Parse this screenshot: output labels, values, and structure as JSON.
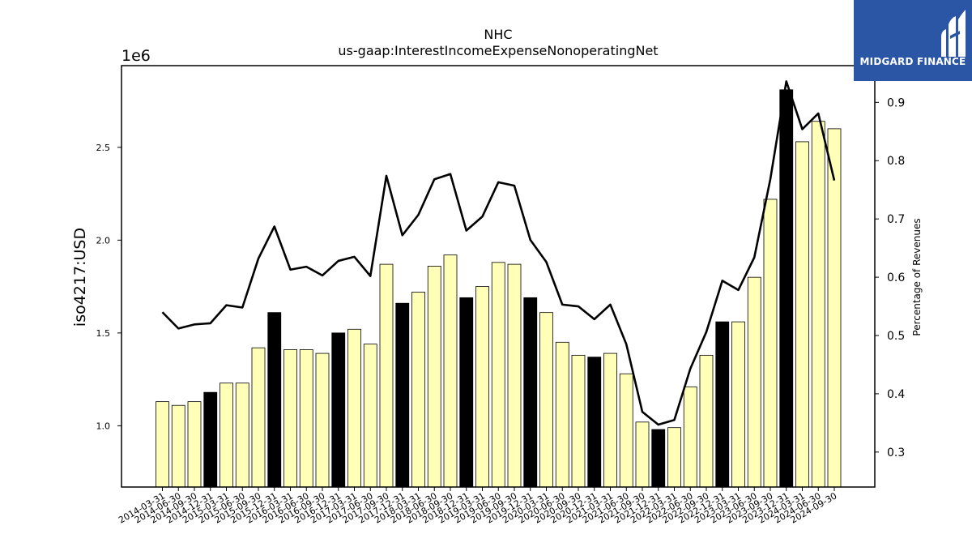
{
  "chart_data": {
    "type": "bar",
    "title": "NHC",
    "subtitle": "us-gaap:InterestIncomeExpenseNonoperatingNet",
    "ylabel": "iso4217:USD",
    "y_offset_label": "1e6",
    "y2label": "Percentage of Revenues",
    "ylim": [
      0.67,
      2.94
    ],
    "y2lim": [
      0.24,
      0.963
    ],
    "yticks": [
      1.0,
      1.5,
      2.0,
      2.5
    ],
    "y2ticks": [
      0.3,
      0.4,
      0.5,
      0.6,
      0.7,
      0.8,
      0.9
    ],
    "grid": false,
    "categories": [
      "2014-03-31",
      "2014-06-30",
      "2014-09-30",
      "2014-12-31",
      "2015-03-31",
      "2015-06-30",
      "2015-09-30",
      "2015-12-31",
      "2016-03-31",
      "2016-06-30",
      "2016-09-30",
      "2016-12-31",
      "2017-03-31",
      "2017-06-30",
      "2017-09-30",
      "2017-12-31",
      "2018-03-31",
      "2018-06-30",
      "2018-09-30",
      "2018-12-31",
      "2019-03-31",
      "2019-06-30",
      "2019-09-30",
      "2019-12-31",
      "2020-03-31",
      "2020-06-30",
      "2020-09-30",
      "2020-12-31",
      "2021-03-31",
      "2021-06-30",
      "2021-09-30",
      "2021-12-31",
      "2022-03-31",
      "2022-06-30",
      "2022-09-30",
      "2022-12-31",
      "2023-03-31",
      "2023-06-30",
      "2023-09-30",
      "2023-12-31",
      "2024-03-31",
      "2024-06-30",
      "2024-09-30"
    ],
    "series": [
      {
        "kind": "bar",
        "values": [
          1.13,
          1.11,
          1.13,
          1.18,
          1.23,
          1.23,
          1.42,
          1.61,
          1.41,
          1.41,
          1.39,
          1.5,
          1.52,
          1.44,
          1.87,
          1.66,
          1.72,
          1.86,
          1.92,
          1.69,
          1.75,
          1.88,
          1.87,
          1.69,
          1.61,
          1.45,
          1.38,
          1.37,
          1.39,
          1.28,
          1.02,
          0.98,
          0.99,
          1.21,
          1.38,
          1.56,
          1.56,
          1.8,
          2.22,
          2.81,
          2.53,
          2.64,
          2.6
        ],
        "highlight": [
          3,
          7,
          11,
          15,
          19,
          23,
          27,
          31,
          35,
          39
        ],
        "color": "#ffffb8",
        "highlight_color": "#000000"
      },
      {
        "kind": "line",
        "axis": "right",
        "values": [
          0.54,
          0.512,
          0.519,
          0.521,
          0.552,
          0.548,
          0.632,
          0.687,
          0.613,
          0.618,
          0.603,
          0.628,
          0.635,
          0.602,
          0.774,
          0.672,
          0.707,
          0.768,
          0.777,
          0.68,
          0.704,
          0.763,
          0.757,
          0.664,
          0.626,
          0.553,
          0.55,
          0.528,
          0.553,
          0.485,
          0.369,
          0.347,
          0.355,
          0.443,
          0.506,
          0.594,
          0.578,
          0.634,
          0.768,
          0.936,
          0.854,
          0.881,
          0.766
        ],
        "color": "#000000"
      }
    ]
  },
  "logo": {
    "text": "MIDGARD FINANCE"
  }
}
